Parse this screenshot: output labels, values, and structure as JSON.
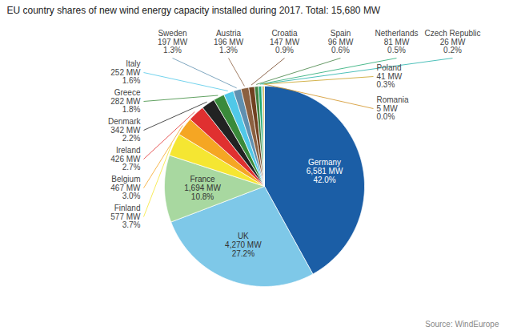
{
  "chart_data": {
    "type": "pie",
    "title": "EU country shares of new wind energy capacity installed during 2017. Total: 15,680 MW",
    "categories": [
      "Germany",
      "UK",
      "France",
      "Finland",
      "Belgium",
      "Ireland",
      "Denmark",
      "Greece",
      "Italy",
      "Sweden",
      "Austria",
      "Croatia",
      "Spain",
      "Netherlands",
      "Czech Republic",
      "Poland",
      "Romania"
    ],
    "values": [
      6581,
      4270,
      1694,
      577,
      467,
      426,
      342,
      282,
      252,
      197,
      196,
      147,
      96,
      81,
      26,
      41,
      5
    ],
    "value_labels": [
      "6,581 MW",
      "4,270 MW",
      "1,694 MW",
      "577 MW",
      "467 MW",
      "426 MW",
      "342 MW",
      "282 MW",
      "252 MW",
      "197 MW",
      "196 MW",
      "147 MW",
      "96 MW",
      "81 MW",
      "26 MW",
      "41 MW",
      "5 MW"
    ],
    "shares": [
      42.0,
      27.2,
      10.8,
      3.7,
      3.0,
      2.7,
      2.2,
      1.8,
      1.6,
      1.3,
      1.3,
      0.9,
      0.6,
      0.5,
      0.2,
      0.3,
      0.0
    ],
    "share_labels": [
      "42.0%",
      "27.2%",
      "10.8%",
      "3.7%",
      "3.0%",
      "2.7%",
      "2.2%",
      "1.8%",
      "1.6%",
      "1.3%",
      "1.3%",
      "0.9%",
      "0.6%",
      "0.5%",
      "0.2%",
      "0.3%",
      "0.0%"
    ],
    "colors": [
      "#1B5EA6",
      "#7EC8E8",
      "#A8D8A0",
      "#F5E632",
      "#F5A623",
      "#E03030",
      "#222222",
      "#3A8A3A",
      "#50C8E8",
      "#6090B0",
      "#8B6040",
      "#704020",
      "#408040",
      "#20A870",
      "#20B0A8",
      "#C8A020",
      "#D09020"
    ],
    "data_labels": true,
    "annotations": [
      "Source: WindEurope"
    ]
  }
}
